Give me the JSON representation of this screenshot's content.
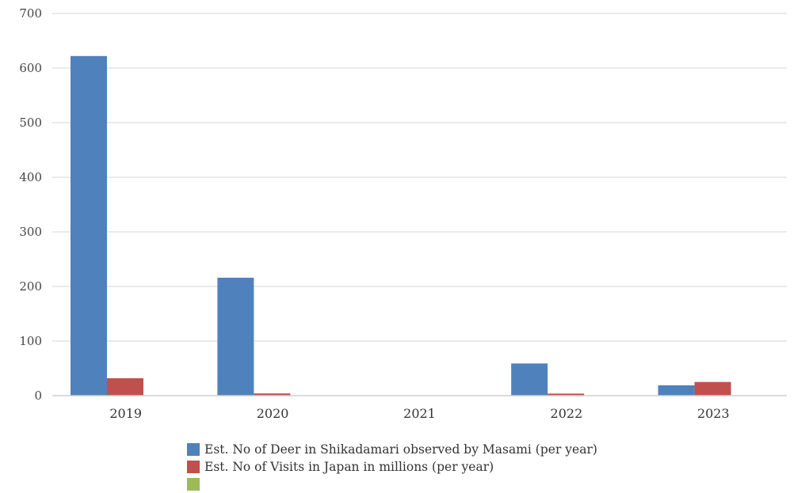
{
  "chart_data": {
    "type": "bar",
    "categories": [
      "2019",
      "2020",
      "2021",
      "2022",
      "2023"
    ],
    "series": [
      {
        "name": "Est. No of Deer in Shikadamari observed by Masami (per year)",
        "color": "#4f81bd",
        "values": [
          622,
          216,
          0,
          59,
          19
        ]
      },
      {
        "name": "Est. No of Visits in Japan in millions (per year)",
        "color": "#c0504d",
        "values": [
          31.9,
          4.1,
          0.2,
          3.8,
          25.1
        ]
      },
      {
        "name": "",
        "color": "#9bbb59",
        "values": [
          0,
          0,
          0,
          0,
          0
        ]
      }
    ],
    "yticks": [
      "0",
      "100",
      "200",
      "300",
      "400",
      "500",
      "600",
      "700"
    ],
    "ylim": [
      0,
      700
    ],
    "grid": true,
    "legend_position": "bottom"
  }
}
